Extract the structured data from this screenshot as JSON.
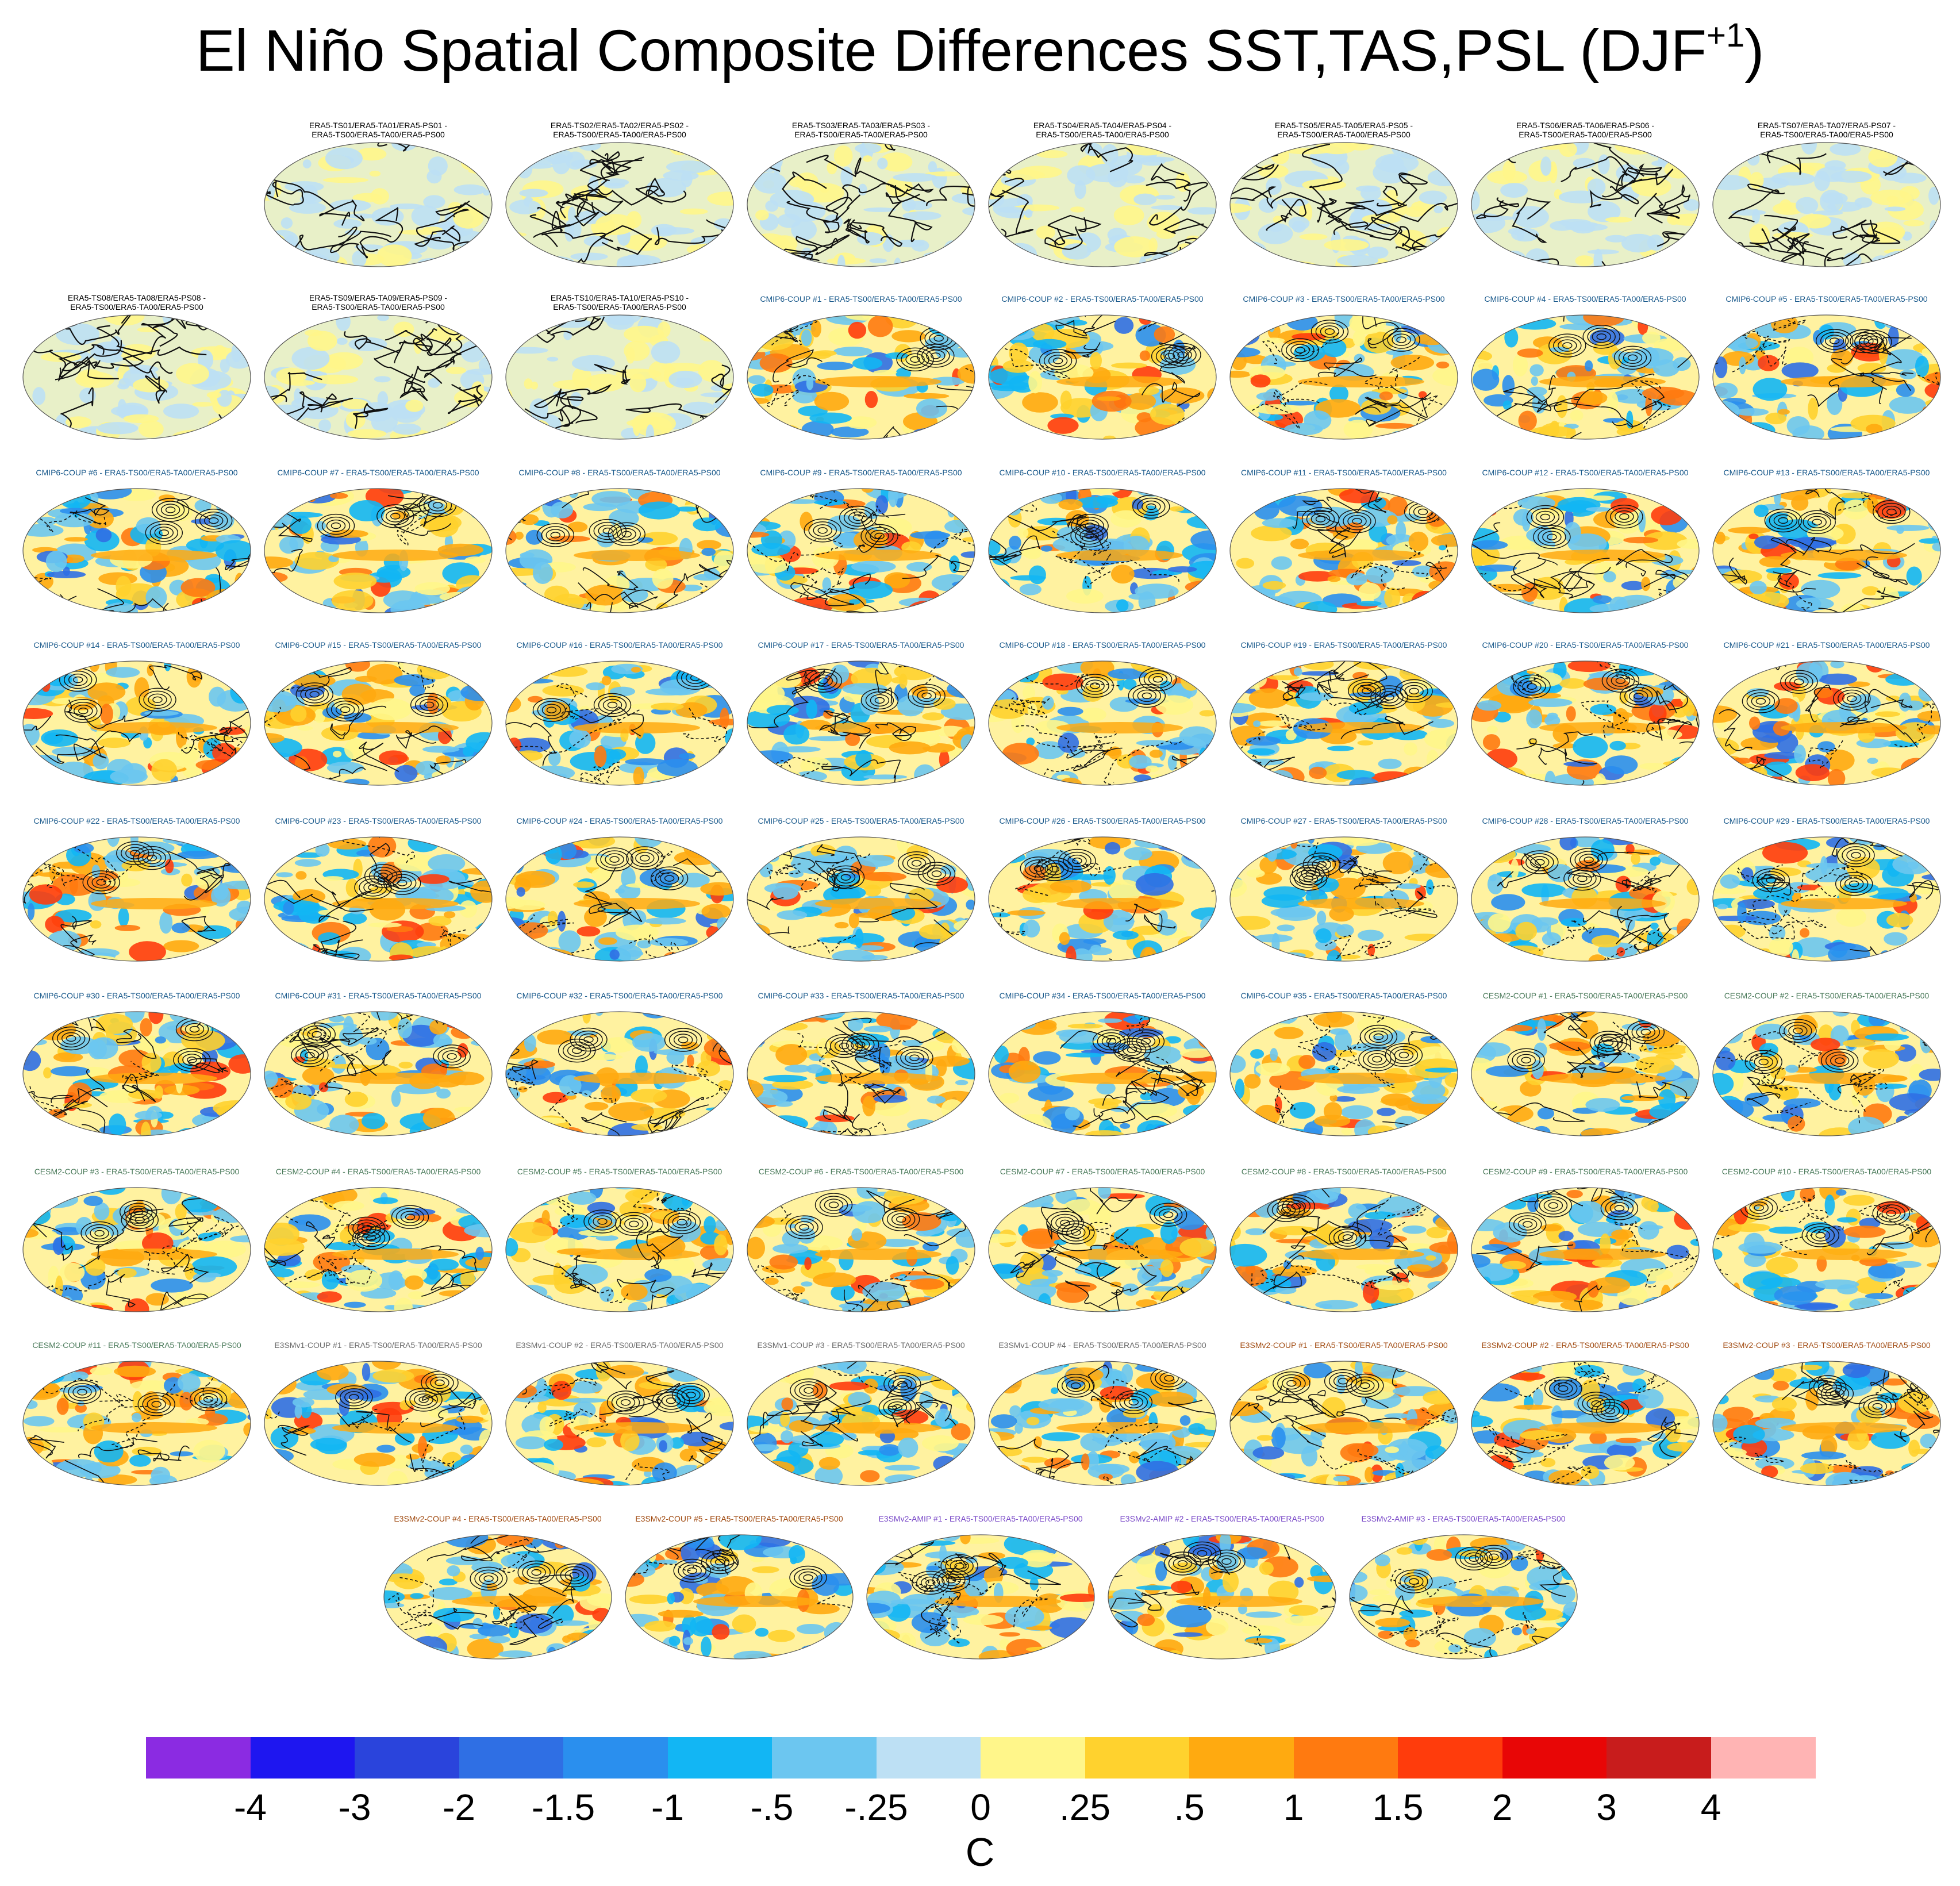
{
  "title": {
    "main": "El Niño Spatial Composite Differences SST,TAS,PSL (DJF",
    "sup": "+1",
    "close": ")"
  },
  "panels": [
    {
      "t1": "ERA5-TS01/ERA5-TA01/ERA5-PS01 -",
      "t2": "ERA5-TS00/ERA5-TA00/ERA5-PS00",
      "group": "era"
    },
    {
      "t1": "ERA5-TS02/ERA5-TA02/ERA5-PS02 -",
      "t2": "ERA5-TS00/ERA5-TA00/ERA5-PS00",
      "group": "era"
    },
    {
      "t1": "ERA5-TS03/ERA5-TA03/ERA5-PS03 -",
      "t2": "ERA5-TS00/ERA5-TA00/ERA5-PS00",
      "group": "era"
    },
    {
      "t1": "ERA5-TS04/ERA5-TA04/ERA5-PS04 -",
      "t2": "ERA5-TS00/ERA5-TA00/ERA5-PS00",
      "group": "era"
    },
    {
      "t1": "ERA5-TS05/ERA5-TA05/ERA5-PS05 -",
      "t2": "ERA5-TS00/ERA5-TA00/ERA5-PS00",
      "group": "era"
    },
    {
      "t1": "ERA5-TS06/ERA5-TA06/ERA5-PS06 -",
      "t2": "ERA5-TS00/ERA5-TA00/ERA5-PS00",
      "group": "era"
    },
    {
      "t1": "ERA5-TS07/ERA5-TA07/ERA5-PS07 -",
      "t2": "ERA5-TS00/ERA5-TA00/ERA5-PS00",
      "group": "era"
    },
    {
      "t1": "ERA5-TS08/ERA5-TA08/ERA5-PS08 -",
      "t2": "ERA5-TS00/ERA5-TA00/ERA5-PS00",
      "group": "era"
    },
    {
      "t1": "ERA5-TS09/ERA5-TA09/ERA5-PS09 -",
      "t2": "ERA5-TS00/ERA5-TA00/ERA5-PS00",
      "group": "era"
    },
    {
      "t1": "ERA5-TS10/ERA5-TA10/ERA5-PS10 -",
      "t2": "ERA5-TS00/ERA5-TA00/ERA5-PS00",
      "group": "era"
    },
    {
      "t1": "CMIP6-COUP  #1 - ERA5-TS00/ERA5-TA00/ERA5-PS00",
      "group": "cmip"
    },
    {
      "t1": "CMIP6-COUP  #2 - ERA5-TS00/ERA5-TA00/ERA5-PS00",
      "group": "cmip"
    },
    {
      "t1": "CMIP6-COUP  #3 - ERA5-TS00/ERA5-TA00/ERA5-PS00",
      "group": "cmip"
    },
    {
      "t1": "CMIP6-COUP  #4 - ERA5-TS00/ERA5-TA00/ERA5-PS00",
      "group": "cmip"
    },
    {
      "t1": "CMIP6-COUP  #5 - ERA5-TS00/ERA5-TA00/ERA5-PS00",
      "group": "cmip"
    },
    {
      "t1": "CMIP6-COUP  #6 - ERA5-TS00/ERA5-TA00/ERA5-PS00",
      "group": "cmip"
    },
    {
      "t1": "CMIP6-COUP  #7 - ERA5-TS00/ERA5-TA00/ERA5-PS00",
      "group": "cmip"
    },
    {
      "t1": "CMIP6-COUP  #8 - ERA5-TS00/ERA5-TA00/ERA5-PS00",
      "group": "cmip"
    },
    {
      "t1": "CMIP6-COUP  #9 - ERA5-TS00/ERA5-TA00/ERA5-PS00",
      "group": "cmip"
    },
    {
      "t1": "CMIP6-COUP  #10 - ERA5-TS00/ERA5-TA00/ERA5-PS00",
      "group": "cmip"
    },
    {
      "t1": "CMIP6-COUP  #11 - ERA5-TS00/ERA5-TA00/ERA5-PS00",
      "group": "cmip"
    },
    {
      "t1": "CMIP6-COUP  #12 - ERA5-TS00/ERA5-TA00/ERA5-PS00",
      "group": "cmip"
    },
    {
      "t1": "CMIP6-COUP  #13 - ERA5-TS00/ERA5-TA00/ERA5-PS00",
      "group": "cmip"
    },
    {
      "t1": "CMIP6-COUP  #14 - ERA5-TS00/ERA5-TA00/ERA5-PS00",
      "group": "cmip"
    },
    {
      "t1": "CMIP6-COUP  #15 - ERA5-TS00/ERA5-TA00/ERA5-PS00",
      "group": "cmip"
    },
    {
      "t1": "CMIP6-COUP  #16 - ERA5-TS00/ERA5-TA00/ERA5-PS00",
      "group": "cmip"
    },
    {
      "t1": "CMIP6-COUP  #17 - ERA5-TS00/ERA5-TA00/ERA5-PS00",
      "group": "cmip"
    },
    {
      "t1": "CMIP6-COUP  #18 - ERA5-TS00/ERA5-TA00/ERA5-PS00",
      "group": "cmip"
    },
    {
      "t1": "CMIP6-COUP  #19 - ERA5-TS00/ERA5-TA00/ERA5-PS00",
      "group": "cmip"
    },
    {
      "t1": "CMIP6-COUP  #20 - ERA5-TS00/ERA5-TA00/ERA5-PS00",
      "group": "cmip"
    },
    {
      "t1": "CMIP6-COUP  #21 - ERA5-TS00/ERA5-TA00/ERA5-PS00",
      "group": "cmip"
    },
    {
      "t1": "CMIP6-COUP  #22 - ERA5-TS00/ERA5-TA00/ERA5-PS00",
      "group": "cmip"
    },
    {
      "t1": "CMIP6-COUP  #23 - ERA5-TS00/ERA5-TA00/ERA5-PS00",
      "group": "cmip"
    },
    {
      "t1": "CMIP6-COUP  #24 - ERA5-TS00/ERA5-TA00/ERA5-PS00",
      "group": "cmip"
    },
    {
      "t1": "CMIP6-COUP  #25 - ERA5-TS00/ERA5-TA00/ERA5-PS00",
      "group": "cmip"
    },
    {
      "t1": "CMIP6-COUP  #26 - ERA5-TS00/ERA5-TA00/ERA5-PS00",
      "group": "cmip"
    },
    {
      "t1": "CMIP6-COUP  #27 - ERA5-TS00/ERA5-TA00/ERA5-PS00",
      "group": "cmip"
    },
    {
      "t1": "CMIP6-COUP  #28 - ERA5-TS00/ERA5-TA00/ERA5-PS00",
      "group": "cmip"
    },
    {
      "t1": "CMIP6-COUP  #29 - ERA5-TS00/ERA5-TA00/ERA5-PS00",
      "group": "cmip"
    },
    {
      "t1": "CMIP6-COUP  #30 - ERA5-TS00/ERA5-TA00/ERA5-PS00",
      "group": "cmip"
    },
    {
      "t1": "CMIP6-COUP  #31 - ERA5-TS00/ERA5-TA00/ERA5-PS00",
      "group": "cmip"
    },
    {
      "t1": "CMIP6-COUP  #32 - ERA5-TS00/ERA5-TA00/ERA5-PS00",
      "group": "cmip"
    },
    {
      "t1": "CMIP6-COUP  #33 - ERA5-TS00/ERA5-TA00/ERA5-PS00",
      "group": "cmip"
    },
    {
      "t1": "CMIP6-COUP  #34 - ERA5-TS00/ERA5-TA00/ERA5-PS00",
      "group": "cmip"
    },
    {
      "t1": "CMIP6-COUP  #35 - ERA5-TS00/ERA5-TA00/ERA5-PS00",
      "group": "cmip"
    },
    {
      "t1": "CESM2-COUP  #1 - ERA5-TS00/ERA5-TA00/ERA5-PS00",
      "group": "cesm"
    },
    {
      "t1": "CESM2-COUP  #2 - ERA5-TS00/ERA5-TA00/ERA5-PS00",
      "group": "cesm"
    },
    {
      "t1": "CESM2-COUP  #3 - ERA5-TS00/ERA5-TA00/ERA5-PS00",
      "group": "cesm"
    },
    {
      "t1": "CESM2-COUP  #4 - ERA5-TS00/ERA5-TA00/ERA5-PS00",
      "group": "cesm"
    },
    {
      "t1": "CESM2-COUP  #5 - ERA5-TS00/ERA5-TA00/ERA5-PS00",
      "group": "cesm"
    },
    {
      "t1": "CESM2-COUP  #6 - ERA5-TS00/ERA5-TA00/ERA5-PS00",
      "group": "cesm"
    },
    {
      "t1": "CESM2-COUP  #7 - ERA5-TS00/ERA5-TA00/ERA5-PS00",
      "group": "cesm"
    },
    {
      "t1": "CESM2-COUP  #8 - ERA5-TS00/ERA5-TA00/ERA5-PS00",
      "group": "cesm"
    },
    {
      "t1": "CESM2-COUP  #9 - ERA5-TS00/ERA5-TA00/ERA5-PS00",
      "group": "cesm"
    },
    {
      "t1": "CESM2-COUP  #10 - ERA5-TS00/ERA5-TA00/ERA5-PS00",
      "group": "cesm"
    },
    {
      "t1": "CESM2-COUP  #11 - ERA5-TS00/ERA5-TA00/ERA5-PS00",
      "group": "cesm"
    },
    {
      "t1": "E3SMv1-COUP #1 - ERA5-TS00/ERA5-TA00/ERA5-PS00",
      "group": "e3v1"
    },
    {
      "t1": "E3SMv1-COUP #2 - ERA5-TS00/ERA5-TA00/ERA5-PS00",
      "group": "e3v1"
    },
    {
      "t1": "E3SMv1-COUP #3 - ERA5-TS00/ERA5-TA00/ERA5-PS00",
      "group": "e3v1"
    },
    {
      "t1": "E3SMv1-COUP #4 - ERA5-TS00/ERA5-TA00/ERA5-PS00",
      "group": "e3v1"
    },
    {
      "t1": "E3SMv2-COUP #1 - ERA5-TS00/ERA5-TA00/ERA5-PS00",
      "group": "e3v2c"
    },
    {
      "t1": "E3SMv2-COUP #2 - ERA5-TS00/ERA5-TA00/ERA5-PS00",
      "group": "e3v2c"
    },
    {
      "t1": "E3SMv2-COUP #3 - ERA5-TS00/ERA5-TA00/ERA5-PS00",
      "group": "e3v2c"
    },
    {
      "t1": "E3SMv2-COUP #4 - ERA5-TS00/ERA5-TA00/ERA5-PS00",
      "group": "e3v2c"
    },
    {
      "t1": "E3SMv2-COUP #5 - ERA5-TS00/ERA5-TA00/ERA5-PS00",
      "group": "e3v2c"
    },
    {
      "t1": "E3SMv2-AMIP #1 - ERA5-TS00/ERA5-TA00/ERA5-PS00",
      "group": "e3v2a"
    },
    {
      "t1": "E3SMv2-AMIP #2 - ERA5-TS00/ERA5-TA00/ERA5-PS00",
      "group": "e3v2a"
    },
    {
      "t1": "E3SMv2-AMIP #3 - ERA5-TS00/ERA5-TA00/ERA5-PS00",
      "group": "e3v2a"
    }
  ],
  "colorbar": {
    "colors": [
      "#8b2be2",
      "#1e16f0",
      "#2a44dc",
      "#2f6fe4",
      "#2a8fee",
      "#12b6f4",
      "#6cc6f0",
      "#bde0f4",
      "#fff68a",
      "#ffd22e",
      "#ffaa10",
      "#ff7a10",
      "#ff3c0c",
      "#e80606",
      "#c81c1c",
      "#ffb4b4"
    ],
    "labels": [
      "-4",
      "-3",
      "-2",
      "-1.5",
      "-1",
      "-.5",
      "-.25",
      "0",
      ".25",
      ".5",
      "1",
      "1.5",
      "2",
      "3",
      "4"
    ],
    "units": "C"
  }
}
